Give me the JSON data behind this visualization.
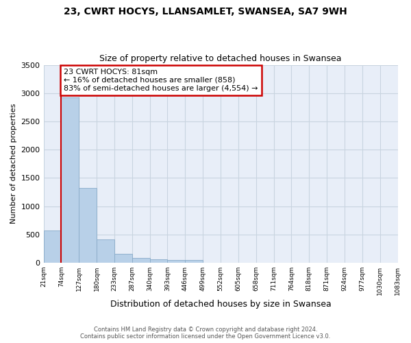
{
  "title_line1": "23, CWRT HOCYS, LLANSAMLET, SWANSEA, SA7 9WH",
  "title_line2": "Size of property relative to detached houses in Swansea",
  "xlabel": "Distribution of detached houses by size in Swansea",
  "ylabel": "Number of detached properties",
  "bin_labels": [
    "21sqm",
    "74sqm",
    "127sqm",
    "180sqm",
    "233sqm",
    "287sqm",
    "340sqm",
    "393sqm",
    "446sqm",
    "499sqm",
    "552sqm",
    "605sqm",
    "658sqm",
    "711sqm",
    "764sqm",
    "818sqm",
    "871sqm",
    "924sqm",
    "977sqm",
    "1030sqm",
    "1083sqm"
  ],
  "bar_values": [
    570,
    2920,
    1320,
    415,
    155,
    85,
    60,
    50,
    45,
    0,
    0,
    0,
    0,
    0,
    0,
    0,
    0,
    0,
    0,
    0
  ],
  "bar_color": "#b8d0e8",
  "bar_edge_color": "#88aac8",
  "ylim": [
    0,
    3500
  ],
  "yticks": [
    0,
    500,
    1000,
    1500,
    2000,
    2500,
    3000,
    3500
  ],
  "annotation_text": "23 CWRT HOCYS: 81sqm\n← 16% of detached houses are smaller (858)\n83% of semi-detached houses are larger (4,554) →",
  "annotation_box_facecolor": "#ffffff",
  "annotation_border_color": "#cc0000",
  "property_line_color": "#cc0000",
  "grid_color": "#c8d4e0",
  "background_color": "#e8eef8",
  "footer_line1": "Contains HM Land Registry data © Crown copyright and database right 2024.",
  "footer_line2": "Contains public sector information licensed under the Open Government Licence v3.0."
}
